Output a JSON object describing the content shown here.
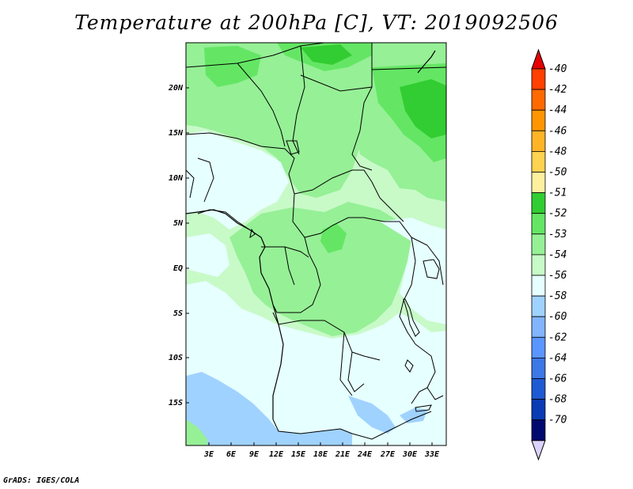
{
  "title": "Temperature at 200hPa [C], VT: 2019092506",
  "footer": "GrADS: IGES/COLA",
  "map": {
    "lat_labels": [
      "20N",
      "15N",
      "10N",
      "5N",
      "EQ",
      "5S",
      "10S",
      "15S"
    ],
    "lon_labels": [
      "3E",
      "6E",
      "9E",
      "12E",
      "15E",
      "18E",
      "21E",
      "24E",
      "27E",
      "30E",
      "33E"
    ]
  },
  "legend": {
    "labels": [
      "-40",
      "-42",
      "-44",
      "-46",
      "-48",
      "-50",
      "-51",
      "-52",
      "-53",
      "-54",
      "-56",
      "-58",
      "-60",
      "-62",
      "-64",
      "-66",
      "-68",
      "-70"
    ],
    "colors": [
      "#ff4000",
      "#ff6a00",
      "#ff9600",
      "#ffb428",
      "#ffd250",
      "#fff0a0",
      "#32cd32",
      "#64e664",
      "#96f096",
      "#c8fac8",
      "#e6ffff",
      "#a0d2ff",
      "#82b4ff",
      "#5a96ff",
      "#3c78e6",
      "#1e5ad2",
      "#0a3cb4",
      "#000a6e"
    ],
    "top_arrow_color": "#e60000",
    "bottom_arrow_color": "#dcd2ff"
  }
}
